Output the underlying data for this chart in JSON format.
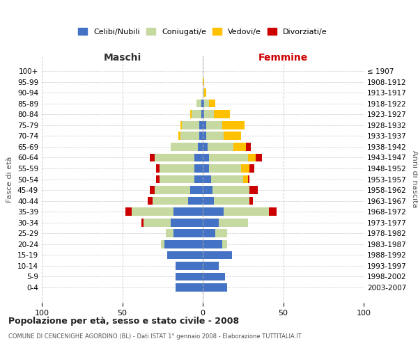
{
  "age_groups": [
    "0-4",
    "5-9",
    "10-14",
    "15-19",
    "20-24",
    "25-29",
    "30-34",
    "35-39",
    "40-44",
    "45-49",
    "50-54",
    "55-59",
    "60-64",
    "65-69",
    "70-74",
    "75-79",
    "80-84",
    "85-89",
    "90-94",
    "95-99",
    "100+"
  ],
  "birth_years": [
    "2003-2007",
    "1998-2002",
    "1993-1997",
    "1988-1992",
    "1983-1987",
    "1978-1982",
    "1973-1977",
    "1968-1972",
    "1963-1967",
    "1958-1962",
    "1953-1957",
    "1948-1952",
    "1943-1947",
    "1938-1942",
    "1933-1937",
    "1928-1932",
    "1923-1927",
    "1918-1922",
    "1913-1917",
    "1908-1912",
    "≤ 1907"
  ],
  "male": {
    "celibi": [
      17,
      17,
      17,
      22,
      24,
      18,
      20,
      18,
      9,
      8,
      5,
      5,
      5,
      3,
      2,
      2,
      1,
      1,
      0,
      0,
      0
    ],
    "coniugati": [
      0,
      0,
      0,
      0,
      2,
      5,
      17,
      26,
      22,
      22,
      22,
      22,
      25,
      17,
      12,
      11,
      6,
      3,
      0,
      0,
      0
    ],
    "vedovi": [
      0,
      0,
      0,
      0,
      0,
      0,
      0,
      0,
      0,
      0,
      0,
      0,
      0,
      0,
      1,
      1,
      1,
      0,
      0,
      0,
      0
    ],
    "divorziati": [
      0,
      0,
      0,
      0,
      0,
      0,
      1,
      4,
      3,
      3,
      2,
      2,
      3,
      0,
      0,
      0,
      0,
      0,
      0,
      0,
      0
    ]
  },
  "female": {
    "nubili": [
      15,
      14,
      10,
      18,
      12,
      8,
      10,
      13,
      7,
      6,
      5,
      4,
      4,
      3,
      2,
      2,
      1,
      1,
      0,
      0,
      0
    ],
    "coniugate": [
      0,
      0,
      0,
      0,
      3,
      7,
      18,
      28,
      22,
      23,
      20,
      20,
      24,
      16,
      11,
      10,
      6,
      3,
      1,
      0,
      0
    ],
    "vedove": [
      0,
      0,
      0,
      0,
      0,
      0,
      0,
      0,
      0,
      0,
      3,
      5,
      5,
      8,
      11,
      14,
      10,
      4,
      1,
      1,
      0
    ],
    "divorziate": [
      0,
      0,
      0,
      0,
      0,
      0,
      0,
      5,
      2,
      5,
      1,
      3,
      4,
      3,
      0,
      0,
      0,
      0,
      0,
      0,
      0
    ]
  },
  "colors": {
    "celibi_nubili": "#4472c4",
    "coniugati": "#c5d9a0",
    "vedovi": "#ffc000",
    "divorziati": "#cc0000"
  },
  "xlim": [
    -100,
    100
  ],
  "xticks": [
    -100,
    -50,
    0,
    50,
    100
  ],
  "xticklabels": [
    "100",
    "50",
    "0",
    "50",
    "100"
  ],
  "title": "Popolazione per età, sesso e stato civile - 2008",
  "subtitle": "COMUNE DI CENCENIGHE AGORDINO (BL) - Dati ISTAT 1° gennaio 2008 - Elaborazione TUTTITALIA.IT",
  "ylabel_left": "Fasce di età",
  "ylabel_right": "Anni di nascita",
  "label_maschi": "Maschi",
  "label_femmine": "Femmine",
  "legend_labels": [
    "Celibi/Nubili",
    "Coniugati/e",
    "Vedovi/e",
    "Divorziati/e"
  ],
  "background_color": "#ffffff",
  "grid_color": "#cccccc"
}
